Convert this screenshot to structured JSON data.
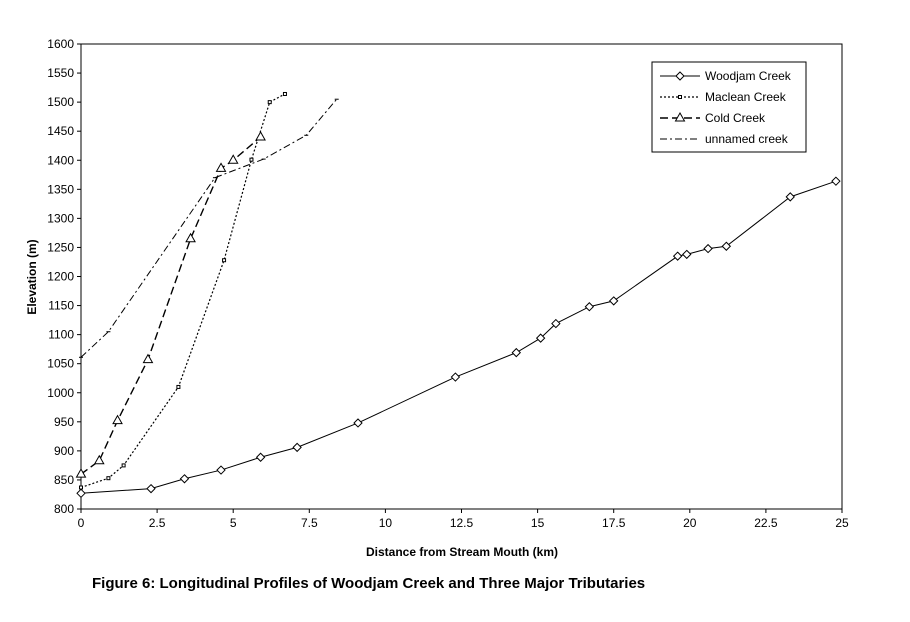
{
  "caption": "Figure 6: Longitudinal Profiles of Woodjam Creek and Three Major Tributaries",
  "chart_data": {
    "type": "line",
    "title": "",
    "xlabel": "Distance from Stream Mouth (km)",
    "ylabel": "Elevation (m)",
    "xlim": [
      0,
      25
    ],
    "ylim": [
      800,
      1600
    ],
    "x_ticks": [
      0,
      2.5,
      5,
      7.5,
      10,
      12.5,
      15,
      17.5,
      20,
      22.5,
      25
    ],
    "y_ticks": [
      800,
      850,
      900,
      950,
      1000,
      1050,
      1100,
      1150,
      1200,
      1250,
      1300,
      1350,
      1400,
      1450,
      1500,
      1550,
      1600
    ],
    "grid": false,
    "legend_position": "top-right",
    "series": [
      {
        "name": "Woodjam Creek",
        "marker": "diamond",
        "dash": "solid",
        "points": [
          [
            0,
            827
          ],
          [
            2.3,
            835
          ],
          [
            3.4,
            852
          ],
          [
            4.6,
            867
          ],
          [
            5.9,
            889
          ],
          [
            7.1,
            906
          ],
          [
            9.1,
            948
          ],
          [
            12.3,
            1027
          ],
          [
            14.3,
            1069
          ],
          [
            15.1,
            1094
          ],
          [
            15.6,
            1119
          ],
          [
            16.7,
            1148
          ],
          [
            17.5,
            1158
          ],
          [
            19.6,
            1235
          ],
          [
            19.9,
            1238
          ],
          [
            20.6,
            1248
          ],
          [
            21.2,
            1252
          ],
          [
            23.3,
            1337
          ],
          [
            24.8,
            1364
          ]
        ]
      },
      {
        "name": "Maclean Creek",
        "marker": "small-square",
        "dash": "dotted",
        "points": [
          [
            0,
            837
          ],
          [
            0.9,
            853
          ],
          [
            1.4,
            875
          ],
          [
            3.2,
            1010
          ],
          [
            4.7,
            1228
          ],
          [
            5.6,
            1401
          ],
          [
            6.2,
            1500
          ],
          [
            6.7,
            1514
          ]
        ]
      },
      {
        "name": "Cold Creek",
        "marker": "triangle",
        "dash": "long-dash",
        "points": [
          [
            0,
            860
          ],
          [
            0.6,
            883
          ],
          [
            1.2,
            952
          ],
          [
            2.2,
            1057
          ],
          [
            3.6,
            1265
          ],
          [
            4.6,
            1386
          ],
          [
            5.0,
            1400
          ],
          [
            5.9,
            1440
          ]
        ]
      },
      {
        "name": "unnamed creek",
        "marker": "small-dash",
        "dash": "dash-dot",
        "points": [
          [
            0,
            1061
          ],
          [
            0.9,
            1105
          ],
          [
            4.4,
            1370
          ],
          [
            6.0,
            1402
          ],
          [
            7.4,
            1443
          ],
          [
            8.4,
            1505
          ]
        ]
      }
    ]
  }
}
